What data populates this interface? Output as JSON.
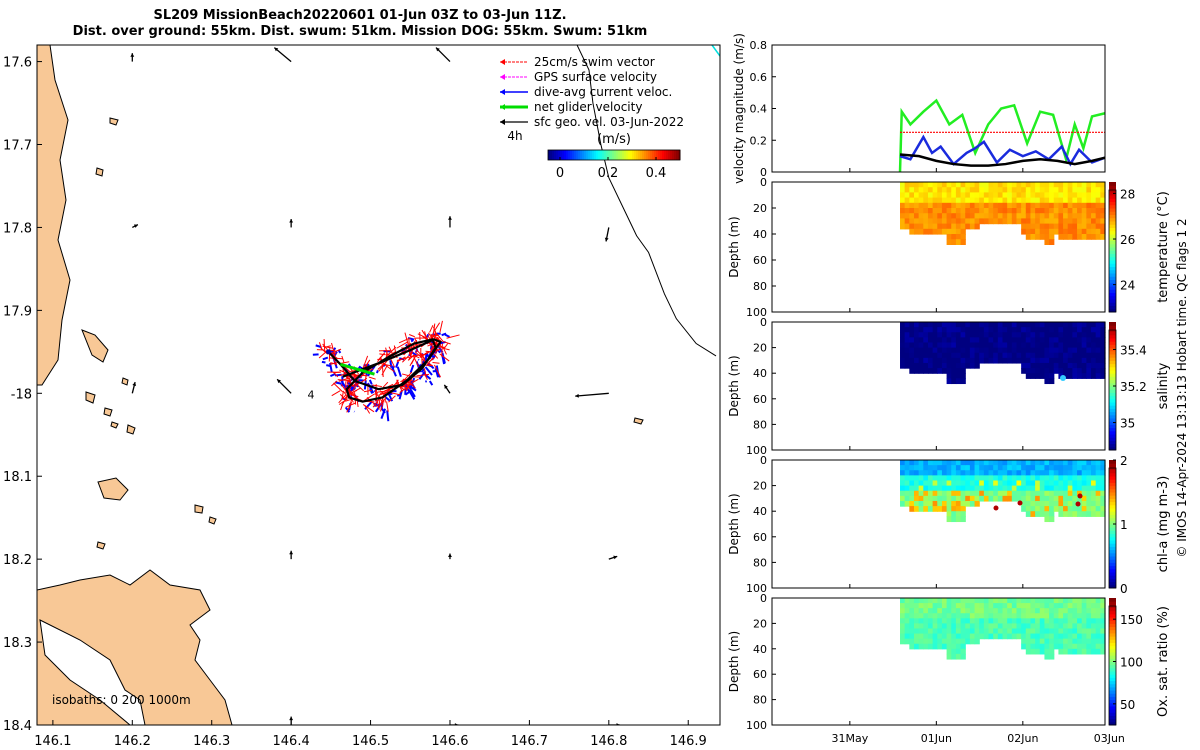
{
  "title_line1": "SL209 MissionBeach20220601 01-Jun 03Z to 03-Jun 11Z.",
  "title_line2": "Dist. over ground: 55km. Dist. swum: 51km. Mission DOG: 55km. Swum: 51km",
  "credit": "© IMOS 14-Apr-2024 13:13:13 Hobart time. QC flags 1  2",
  "colors": {
    "land": "#f8c896",
    "swim": "#ff0000",
    "gps": "#ff00ff",
    "dive": "#0000ff",
    "net": "#00dd00",
    "sfc": "#000000",
    "velocity_green": "#22ee22",
    "velocity_blue": "#1a2bdd"
  },
  "chart_data": [
    {
      "id": "map",
      "type": "scatter",
      "xlim": [
        146.08,
        146.94
      ],
      "ylim": [
        -18.4,
        -17.58
      ],
      "xticks": [
        146.1,
        146.2,
        146.3,
        146.4,
        146.5,
        146.6,
        146.7,
        146.8,
        146.9
      ],
      "xtick_labels": [
        "146.1",
        "146.2",
        "146.3",
        "146.4",
        "146.5",
        "146.6",
        "146.7",
        "146.8",
        "146.9"
      ],
      "yticks": [
        -17.6,
        -17.7,
        -17.8,
        -17.9,
        -18.0,
        -18.1,
        -18.2,
        -18.3,
        -18.4
      ],
      "ytick_labels": [
        "17.6",
        "17.7",
        "17.8",
        "17.9",
        "-18",
        "18.1",
        "18.2",
        "18.3",
        "18.4"
      ],
      "legend": [
        "25cm/s swim vector",
        "GPS surface velocity",
        "dive-avg current veloc.",
        "net glider velocity",
        "sfc geo. vel. 03-Jun-2022"
      ],
      "scale_label": "4h",
      "colorbar_title": "(m/s)",
      "colorbar_ticks": [
        0,
        0.2,
        0.4
      ],
      "colorbar_tick_labels": [
        "0",
        "0.2",
        "0.4"
      ],
      "colorbar_range": [
        -0.05,
        0.5
      ],
      "isobaths_label": "isobaths: 0   200  1000m",
      "track_marker_label": "4",
      "glider_track": {
        "lon": [
          146.447,
          146.462,
          146.48,
          146.51,
          146.54,
          146.565,
          146.582,
          146.578,
          146.555,
          146.525,
          146.49,
          146.47,
          146.473,
          146.49,
          146.515,
          146.545,
          146.572,
          146.588,
          146.58,
          146.55,
          146.515,
          146.487,
          146.465
        ],
        "lat": [
          -17.95,
          -17.965,
          -17.985,
          -17.995,
          -17.99,
          -17.97,
          -17.945,
          -17.935,
          -17.94,
          -17.955,
          -17.975,
          -17.995,
          -18.005,
          -18.01,
          -18.005,
          -17.985,
          -17.96,
          -17.938,
          -17.935,
          -17.948,
          -17.962,
          -17.972,
          -17.98
        ]
      },
      "sfc_vectors": [
        {
          "lon": 146.2,
          "lat": -17.8,
          "u": 0.02,
          "v": 0.01
        },
        {
          "lon": 146.4,
          "lat": -17.8,
          "u": 0.0,
          "v": 0.03
        },
        {
          "lon": 146.6,
          "lat": -17.8,
          "u": 0.0,
          "v": 0.04
        },
        {
          "lon": 146.8,
          "lat": -17.8,
          "u": -0.01,
          "v": -0.05
        },
        {
          "lon": 146.2,
          "lat": -17.6,
          "u": 0.0,
          "v": 0.03
        },
        {
          "lon": 146.4,
          "lat": -17.6,
          "u": -0.06,
          "v": 0.05
        },
        {
          "lon": 146.6,
          "lat": -17.6,
          "u": -0.05,
          "v": 0.05
        },
        {
          "lon": 146.2,
          "lat": -18.0,
          "u": 0.01,
          "v": 0.04
        },
        {
          "lon": 146.4,
          "lat": -18.0,
          "u": -0.05,
          "v": 0.05
        },
        {
          "lon": 146.6,
          "lat": -18.0,
          "u": -0.02,
          "v": 0.03
        },
        {
          "lon": 146.8,
          "lat": -18.0,
          "u": -0.12,
          "v": -0.01
        },
        {
          "lon": 146.4,
          "lat": -18.2,
          "u": 0.0,
          "v": 0.03
        },
        {
          "lon": 146.6,
          "lat": -18.2,
          "u": 0.0,
          "v": 0.02
        },
        {
          "lon": 146.8,
          "lat": -18.2,
          "u": 0.03,
          "v": 0.01
        },
        {
          "lon": 146.4,
          "lat": -18.4,
          "u": 0.0,
          "v": 0.03
        },
        {
          "lon": 146.6,
          "lat": -18.4,
          "u": 0.03,
          "v": 0.0
        },
        {
          "lon": 146.8,
          "lat": -18.4,
          "u": 0.04,
          "v": 0.0
        }
      ],
      "isobath_line": {
        "lon": [
          146.76,
          146.775,
          146.78,
          146.79,
          146.8,
          146.82,
          146.835,
          146.85,
          146.87,
          146.885,
          146.91,
          146.935
        ],
        "lat": [
          -17.58,
          -17.61,
          -17.65,
          -17.7,
          -17.74,
          -17.78,
          -17.81,
          -17.83,
          -17.88,
          -17.91,
          -17.94,
          -17.955
        ]
      }
    },
    {
      "id": "velocity",
      "type": "line",
      "ylabel": "velocity magnitude (m/s)",
      "ylim": [
        0,
        0.8
      ],
      "yticks": [
        0,
        0.2,
        0.4,
        0.6,
        0.8
      ],
      "ytick_labels": [
        "0",
        "0.2",
        "0.4",
        "0.6",
        "0.8"
      ],
      "xlim_days": [
        29.6,
        33.45
      ],
      "series": [
        {
          "name": "net glider velocity",
          "days": [
            31.08,
            31.1,
            31.2,
            31.35,
            31.5,
            31.65,
            31.8,
            31.95,
            32.1,
            32.25,
            32.4,
            32.55,
            32.7,
            32.85,
            33.0,
            33.1,
            33.2,
            33.3,
            33.45
          ],
          "values": [
            0.0,
            0.38,
            0.3,
            0.38,
            0.45,
            0.3,
            0.36,
            0.12,
            0.3,
            0.4,
            0.42,
            0.18,
            0.38,
            0.36,
            0.08,
            0.3,
            0.15,
            0.35,
            0.37
          ]
        },
        {
          "name": "dive-avg current veloc.",
          "days": [
            31.08,
            31.2,
            31.35,
            31.45,
            31.55,
            31.7,
            31.85,
            31.95,
            32.05,
            32.2,
            32.35,
            32.5,
            32.65,
            32.8,
            32.95,
            33.05,
            33.15,
            33.3,
            33.45
          ],
          "values": [
            0.1,
            0.08,
            0.22,
            0.12,
            0.16,
            0.05,
            0.12,
            0.15,
            0.19,
            0.06,
            0.14,
            0.1,
            0.13,
            0.08,
            0.16,
            0.05,
            0.14,
            0.06,
            0.09
          ]
        },
        {
          "name": "25cm/s swim vector",
          "days": [
            31.08,
            33.45
          ],
          "values": [
            0.25,
            0.25
          ]
        },
        {
          "name": "sfc geo. vel.",
          "days": [
            31.08,
            31.3,
            31.5,
            31.7,
            31.9,
            32.1,
            32.3,
            32.5,
            32.7,
            32.9,
            33.1,
            33.3,
            33.45
          ],
          "values": [
            0.11,
            0.1,
            0.07,
            0.05,
            0.04,
            0.04,
            0.05,
            0.07,
            0.08,
            0.07,
            0.05,
            0.07,
            0.09
          ]
        }
      ]
    },
    {
      "id": "temperature",
      "type": "heatmap",
      "ylabel": "Depth (m)",
      "cbar_label": "temperature (°C)",
      "cbar_range": [
        22.8,
        28.5
      ],
      "cbar_ticks": [
        24,
        26,
        28
      ],
      "cbar_tick_labels": [
        "24",
        "26",
        "28"
      ],
      "ylim": [
        100,
        0
      ],
      "yticks": [
        0,
        20,
        40,
        60,
        80,
        100
      ],
      "ytick_labels": [
        "0",
        "20",
        "40",
        "60",
        "80",
        "100"
      ],
      "layers": [
        {
          "top": 0,
          "bottom": 14,
          "value": 26.5
        },
        {
          "top": 14,
          "bottom": 50,
          "value": 27.0
        }
      ]
    },
    {
      "id": "salinity",
      "type": "heatmap",
      "ylabel": "Depth (m)",
      "cbar_label": "salinity",
      "cbar_range": [
        34.85,
        35.55
      ],
      "cbar_ticks": [
        35.0,
        35.2,
        35.4
      ],
      "cbar_tick_labels": [
        "35",
        "35.2",
        "35.4"
      ],
      "ylim": [
        100,
        0
      ],
      "yticks": [
        0,
        20,
        40,
        60,
        80,
        100
      ],
      "ytick_labels": [
        "0",
        "20",
        "40",
        "60",
        "80",
        "100"
      ],
      "layers": [
        {
          "top": 0,
          "bottom": 50,
          "value": 34.85
        }
      ]
    },
    {
      "id": "chla",
      "type": "heatmap",
      "ylabel": "Depth (m)",
      "cbar_label": "chl-a (mg m-3)",
      "cbar_range": [
        0,
        2
      ],
      "cbar_ticks": [
        0,
        1,
        2
      ],
      "cbar_tick_labels": [
        "0",
        "1",
        "2"
      ],
      "ylim": [
        100,
        0
      ],
      "yticks": [
        0,
        20,
        40,
        60,
        80,
        100
      ],
      "ytick_labels": [
        "0",
        "20",
        "40",
        "60",
        "80",
        "100"
      ],
      "layers": [
        {
          "top": 0,
          "bottom": 12,
          "value": 0.6
        },
        {
          "top": 12,
          "bottom": 22,
          "value": 0.8
        },
        {
          "top": 22,
          "bottom": 50,
          "value": 1.0
        }
      ]
    },
    {
      "id": "oxygen",
      "type": "heatmap",
      "ylabel": "Depth (m)",
      "cbar_label": "Ox. sat. ratio (%)",
      "cbar_range": [
        25,
        175
      ],
      "cbar_ticks": [
        50,
        100,
        150
      ],
      "cbar_tick_labels": [
        "50",
        "100",
        "150"
      ],
      "ylim": [
        100,
        0
      ],
      "yticks": [
        0,
        20,
        40,
        60,
        80,
        100
      ],
      "ytick_labels": [
        "0",
        "20",
        "40",
        "60",
        "80",
        "100"
      ],
      "layers": [
        {
          "top": 0,
          "bottom": 14,
          "value": 98
        },
        {
          "top": 14,
          "bottom": 50,
          "value": 92
        }
      ]
    }
  ],
  "time_axis": {
    "ticks": [
      30.5,
      31.5,
      32.5,
      33.5
    ],
    "tick_labels": [
      "31May",
      "01Jun",
      "02Jun",
      "03Jun"
    ]
  }
}
